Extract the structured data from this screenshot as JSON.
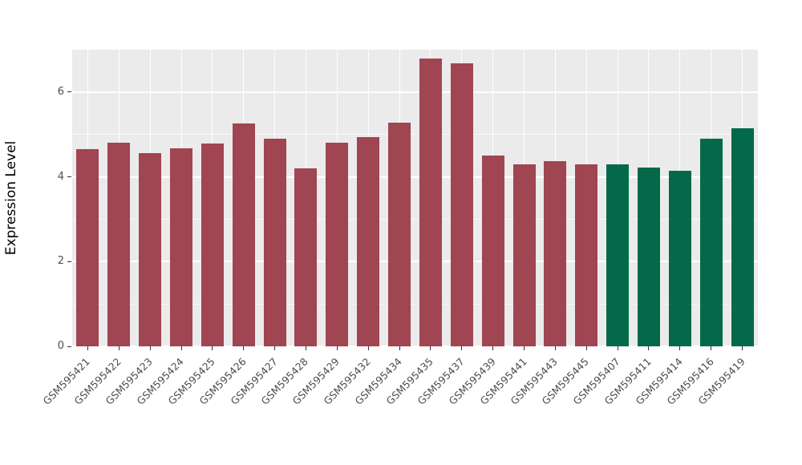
{
  "chart_data": {
    "type": "bar",
    "title": "",
    "xlabel": "",
    "ylabel": "Expression Level",
    "ylim": [
      0,
      7
    ],
    "yticks": [
      0,
      2,
      4,
      6
    ],
    "yticks_minor": [
      1,
      3,
      5
    ],
    "grid": true,
    "legend": "none",
    "panel_bg": "#EBEBEB",
    "grid_major_color": "#FFFFFF",
    "grid_minor_color": "#F7F7F7",
    "categories": [
      "GSM595421",
      "GSM595422",
      "GSM595423",
      "GSM595424",
      "GSM595425",
      "GSM595426",
      "GSM595427",
      "GSM595428",
      "GSM595429",
      "GSM595432",
      "GSM595434",
      "GSM595435",
      "GSM595437",
      "GSM595439",
      "GSM595441",
      "GSM595443",
      "GSM595445",
      "GSM595407",
      "GSM595411",
      "GSM595414",
      "GSM595416",
      "GSM595419"
    ],
    "values": [
      4.65,
      4.8,
      4.55,
      4.67,
      4.78,
      5.25,
      4.9,
      4.2,
      4.8,
      4.93,
      5.27,
      6.8,
      6.68,
      4.5,
      4.3,
      4.37,
      4.3,
      4.3,
      4.22,
      4.15,
      4.9,
      5.15
    ],
    "groups": [
      "group1",
      "group1",
      "group1",
      "group1",
      "group1",
      "group1",
      "group1",
      "group1",
      "group1",
      "group1",
      "group1",
      "group1",
      "group1",
      "group1",
      "group1",
      "group1",
      "group1",
      "group2",
      "group2",
      "group2",
      "group2",
      "group2"
    ],
    "colors": {
      "group1": "#A04552",
      "group2": "#04694A"
    }
  }
}
